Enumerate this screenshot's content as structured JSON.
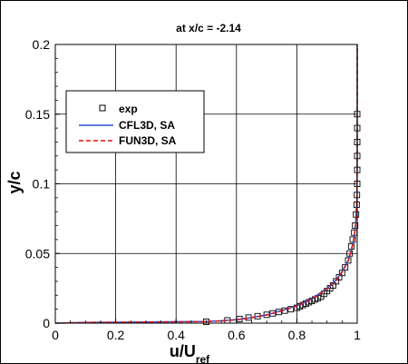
{
  "chart_data": {
    "type": "line",
    "title": "at x/c = -2.14",
    "xlabel": "u/U",
    "xlabel_sub": "ref",
    "ylabel": "y/c",
    "xlim": [
      0,
      1
    ],
    "ylim": [
      0,
      0.2
    ],
    "xticks": [
      "0",
      "0.2",
      "0.4",
      "0.6",
      "0.8",
      "1"
    ],
    "yticks": [
      "0",
      "0.05",
      "0.1",
      "0.15",
      "0.2"
    ],
    "grid": true,
    "legend_position": "upper-left",
    "series": [
      {
        "name": "exp",
        "style": "open-square-markers",
        "color": "#000000",
        "x": [
          0.5,
          0.57,
          0.61,
          0.64,
          0.67,
          0.7,
          0.72,
          0.74,
          0.76,
          0.78,
          0.8,
          0.81,
          0.82,
          0.83,
          0.84,
          0.85,
          0.86,
          0.87,
          0.88,
          0.89,
          0.9,
          0.91,
          0.92,
          0.93,
          0.94,
          0.95,
          0.96,
          0.97,
          0.975,
          0.98,
          0.985,
          0.99,
          0.993,
          0.996,
          0.998,
          0.999,
          1.0,
          1.0,
          1.0,
          1.0,
          1.0,
          1.0
        ],
        "y": [
          0.001,
          0.002,
          0.003,
          0.004,
          0.005,
          0.006,
          0.007,
          0.008,
          0.009,
          0.01,
          0.011,
          0.012,
          0.013,
          0.014,
          0.015,
          0.016,
          0.017,
          0.018,
          0.019,
          0.021,
          0.023,
          0.025,
          0.027,
          0.03,
          0.033,
          0.036,
          0.04,
          0.045,
          0.05,
          0.055,
          0.06,
          0.065,
          0.07,
          0.078,
          0.085,
          0.092,
          0.1,
          0.11,
          0.12,
          0.13,
          0.14,
          0.15
        ]
      },
      {
        "name": "CFL3D, SA",
        "style": "solid",
        "color": "#2f4fd0",
        "x": [
          0.0,
          0.1,
          0.3,
          0.5,
          0.55,
          0.6,
          0.65,
          0.7,
          0.75,
          0.8,
          0.85,
          0.9,
          0.93,
          0.95,
          0.97,
          0.98,
          0.99,
          0.995,
          0.999,
          1.0,
          1.0
        ],
        "y": [
          0.0,
          0.0005,
          0.0008,
          0.0012,
          0.0017,
          0.0025,
          0.004,
          0.006,
          0.009,
          0.0125,
          0.0175,
          0.025,
          0.031,
          0.037,
          0.045,
          0.052,
          0.062,
          0.072,
          0.09,
          0.12,
          0.2
        ]
      },
      {
        "name": "FUN3D, SA",
        "style": "dashed",
        "color": "#e01010",
        "x": [
          0.0,
          0.1,
          0.3,
          0.5,
          0.55,
          0.6,
          0.65,
          0.7,
          0.75,
          0.8,
          0.85,
          0.9,
          0.93,
          0.95,
          0.97,
          0.98,
          0.99,
          0.995,
          0.999,
          1.0,
          1.0
        ],
        "y": [
          0.0,
          0.0005,
          0.0008,
          0.0011,
          0.0016,
          0.0024,
          0.0039,
          0.0058,
          0.0088,
          0.0122,
          0.0172,
          0.0246,
          0.0306,
          0.0366,
          0.0446,
          0.0516,
          0.0616,
          0.0716,
          0.0896,
          0.12,
          0.2
        ]
      }
    ]
  }
}
